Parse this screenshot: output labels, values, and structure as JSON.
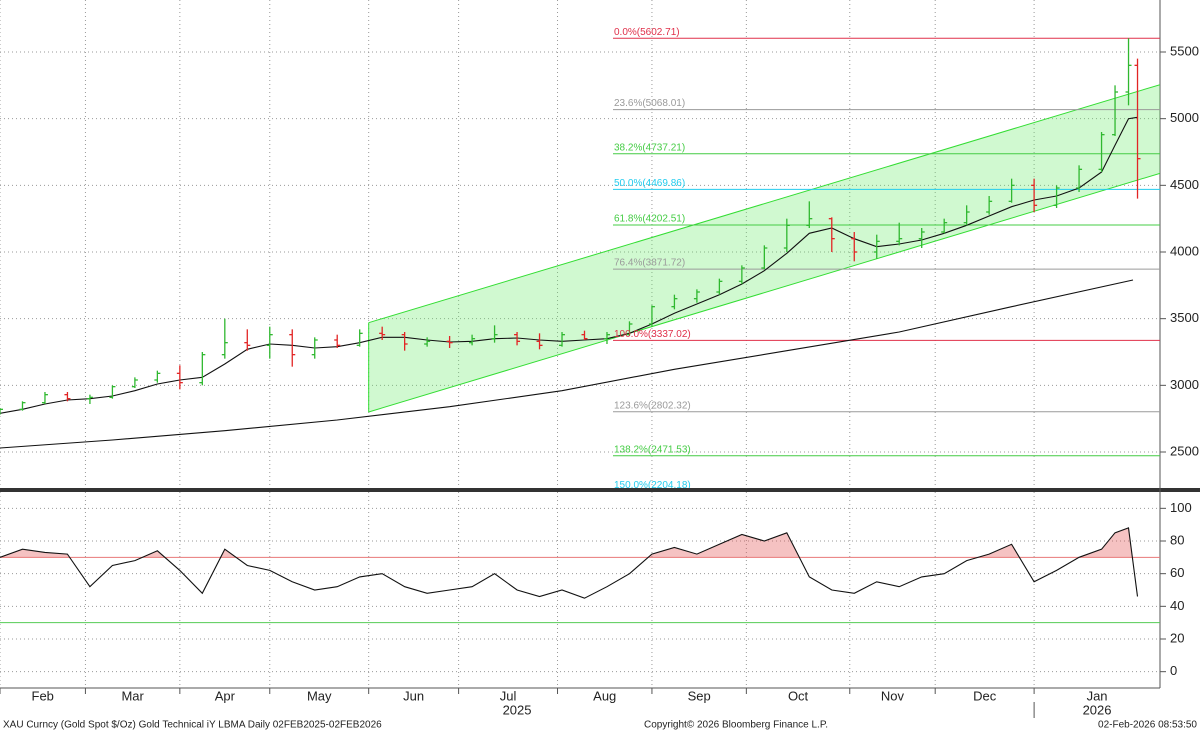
{
  "chart_data": [
    {
      "type": "ohlc",
      "xlim": [
        0,
        258
      ],
      "xticks": [
        {
          "value": 0,
          "label": "Feb"
        },
        {
          "value": 19,
          "label": "Mar"
        },
        {
          "value": 40,
          "label": "Apr"
        },
        {
          "value": 60,
          "label": "May"
        },
        {
          "value": 82,
          "label": "Jun"
        },
        {
          "value": 102,
          "label": "Jul"
        },
        {
          "value": 124,
          "label": "Aug"
        },
        {
          "value": 145,
          "label": "Sep"
        },
        {
          "value": 166,
          "label": "Oct"
        },
        {
          "value": 189,
          "label": "Nov"
        },
        {
          "value": 208,
          "label": "Dec"
        },
        {
          "value": 230,
          "label": "Jan"
        }
      ],
      "years": [
        "2025",
        "2026"
      ],
      "ylim": [
        2230,
        5890
      ],
      "yticks": [
        2500,
        3000,
        3500,
        4000,
        4500,
        5000,
        5500
      ],
      "grid": true,
      "x": [
        0,
        5,
        10,
        15,
        20,
        25,
        30,
        35,
        40,
        45,
        50,
        55,
        60,
        65,
        70,
        75,
        80,
        85,
        90,
        95,
        100,
        105,
        110,
        115,
        120,
        125,
        130,
        135,
        140,
        145,
        150,
        155,
        160,
        165,
        170,
        175,
        180,
        185,
        190,
        195,
        200,
        205,
        210,
        215,
        220,
        225,
        230,
        235,
        240,
        245,
        248,
        251,
        253
      ],
      "open": [
        2800,
        2820,
        2870,
        2930,
        2900,
        2910,
        2990,
        3040,
        3090,
        3020,
        3230,
        3320,
        3300,
        3380,
        3230,
        3340,
        3300,
        3390,
        3380,
        3310,
        3330,
        3320,
        3350,
        3380,
        3330,
        3300,
        3380,
        3350,
        3380,
        3460,
        3590,
        3650,
        3700,
        3780,
        3880,
        4030,
        4200,
        4250,
        4100,
        4000,
        4080,
        4100,
        4150,
        4220,
        4300,
        4380,
        4500,
        4350,
        4480,
        4620,
        4880,
        5200,
        5400
      ],
      "high": [
        2830,
        2880,
        2950,
        2950,
        2930,
        3000,
        3060,
        3110,
        3150,
        3250,
        3500,
        3420,
        3440,
        3420,
        3360,
        3380,
        3420,
        3440,
        3400,
        3360,
        3370,
        3380,
        3450,
        3400,
        3390,
        3400,
        3410,
        3400,
        3480,
        3600,
        3680,
        3720,
        3800,
        3900,
        4050,
        4250,
        4380,
        4260,
        4150,
        4130,
        4220,
        4180,
        4250,
        4350,
        4420,
        4550,
        4550,
        4500,
        4650,
        4900,
        5250,
        5602.71,
        5450
      ],
      "low": [
        2780,
        2810,
        2860,
        2880,
        2860,
        2900,
        2980,
        3020,
        2970,
        3000,
        3200,
        3260,
        3200,
        3140,
        3200,
        3280,
        3290,
        3340,
        3260,
        3290,
        3280,
        3300,
        3320,
        3300,
        3270,
        3290,
        3340,
        3310,
        3370,
        3440,
        3570,
        3620,
        3680,
        3760,
        3870,
        4000,
        4180,
        4000,
        3930,
        3950,
        4050,
        4030,
        4140,
        4200,
        4280,
        4370,
        4300,
        4330,
        4450,
        4600,
        4870,
        5100,
        4400
      ],
      "close": [
        2820,
        2870,
        2930,
        2900,
        2910,
        2990,
        3040,
        3090,
        3020,
        3230,
        3320,
        3300,
        3380,
        3230,
        3340,
        3300,
        3390,
        3380,
        3310,
        3330,
        3320,
        3350,
        3380,
        3330,
        3300,
        3380,
        3350,
        3380,
        3460,
        3590,
        3650,
        3700,
        3780,
        3880,
        4030,
        4200,
        4250,
        4100,
        4000,
        4080,
        4100,
        4150,
        4220,
        4300,
        4380,
        4500,
        4350,
        4480,
        4620,
        4880,
        5200,
        5400,
        4700
      ],
      "up_color": "#2fb82f",
      "down_color": "#e22424",
      "lines": [
        {
          "x": [
            0,
            5,
            10,
            15,
            20,
            25,
            30,
            35,
            40,
            45,
            50,
            55,
            60,
            65,
            70,
            75,
            80,
            85,
            90,
            95,
            100,
            105,
            110,
            115,
            120,
            125,
            130,
            135,
            140,
            145,
            150,
            155,
            160,
            165,
            170,
            175,
            180,
            185,
            190,
            195,
            200,
            205,
            210,
            215,
            220,
            225,
            230,
            235,
            240,
            245,
            248,
            251,
            253
          ],
          "values": [
            2790,
            2820,
            2860,
            2890,
            2900,
            2920,
            2960,
            3010,
            3040,
            3060,
            3160,
            3270,
            3310,
            3300,
            3280,
            3290,
            3320,
            3360,
            3360,
            3340,
            3325,
            3330,
            3350,
            3355,
            3340,
            3330,
            3340,
            3350,
            3390,
            3460,
            3540,
            3610,
            3680,
            3760,
            3860,
            3990,
            4140,
            4180,
            4100,
            4040,
            4060,
            4090,
            4140,
            4200,
            4270,
            4340,
            4390,
            4420,
            4480,
            4600,
            4800,
            5000,
            5010
          ],
          "color": "#111111"
        },
        {
          "x": [
            0,
            25,
            50,
            75,
            100,
            125,
            150,
            175,
            200,
            225,
            252
          ],
          "values": [
            2530,
            2590,
            2660,
            2740,
            2840,
            2960,
            3120,
            3260,
            3400,
            3590,
            3790
          ],
          "color": "#111111"
        }
      ],
      "channel": {
        "x": [
          82,
          258
        ],
        "upper": [
          3470,
          5255
        ],
        "lower": [
          2800,
          4590
        ],
        "color": "#33dd33",
        "fill": "rgba(110,235,110,0.32)"
      },
      "fib_levels": [
        {
          "value": 5602.71,
          "label": "0.0%(5602.71)",
          "color": "#e0304a"
        },
        {
          "value": 5068.01,
          "label": "23.6%(5068.01)",
          "color": "#9a9a9a"
        },
        {
          "value": 4737.21,
          "label": "38.2%(4737.21)",
          "color": "#44cc44"
        },
        {
          "value": 4469.86,
          "label": "50.0%(4469.86)",
          "color": "#22ccee"
        },
        {
          "value": 4202.51,
          "label": "61.8%(4202.51)",
          "color": "#44cc44"
        },
        {
          "value": 3871.72,
          "label": "76.4%(3871.72)",
          "color": "#9a9a9a"
        },
        {
          "value": 3337.02,
          "label": "100.0%(3337.02)",
          "color": "#e0304a"
        },
        {
          "value": 2802.32,
          "label": "123.6%(2802.32)",
          "color": "#9a9a9a"
        },
        {
          "value": 2471.53,
          "label": "138.2%(2471.53)",
          "color": "#44cc44"
        },
        {
          "value": 2204.18,
          "label": "150.0%(2204.18)",
          "color": "#22ccee"
        }
      ]
    },
    {
      "type": "line",
      "ylim": [
        -10,
        110
      ],
      "yticks": [
        0,
        20,
        40,
        60,
        80,
        100
      ],
      "x": [
        0,
        5,
        10,
        15,
        20,
        25,
        30,
        35,
        40,
        45,
        50,
        55,
        60,
        65,
        70,
        75,
        80,
        85,
        90,
        95,
        100,
        105,
        110,
        115,
        120,
        125,
        130,
        135,
        140,
        145,
        150,
        155,
        160,
        165,
        170,
        175,
        180,
        185,
        190,
        195,
        200,
        205,
        210,
        215,
        220,
        225,
        230,
        235,
        240,
        245,
        248,
        251,
        253
      ],
      "values": [
        70,
        75,
        73,
        72,
        52,
        65,
        68,
        74,
        62,
        48,
        75,
        65,
        62,
        55,
        50,
        52,
        58,
        60,
        52,
        48,
        50,
        52,
        60,
        50,
        46,
        50,
        45,
        52,
        60,
        72,
        76,
        72,
        78,
        84,
        80,
        85,
        58,
        50,
        48,
        55,
        52,
        58,
        60,
        68,
        72,
        78,
        55,
        62,
        70,
        75,
        85,
        88,
        46
      ],
      "color": "#111111",
      "levels": [
        {
          "value": 70,
          "color": "#e87878"
        },
        {
          "value": 30,
          "color": "#55cc55"
        }
      ],
      "overbought_fill": "rgba(225,80,80,0.35)"
    }
  ],
  "footer": {
    "left": "XAU Curncy (Gold Spot   $/Oz) Gold Technical iY LBMA Daily 02FEB2025-02FEB2026",
    "center": "Copyright© 2026 Bloomberg Finance L.P.",
    "right": "02-Feb-2026 08:53:50"
  }
}
